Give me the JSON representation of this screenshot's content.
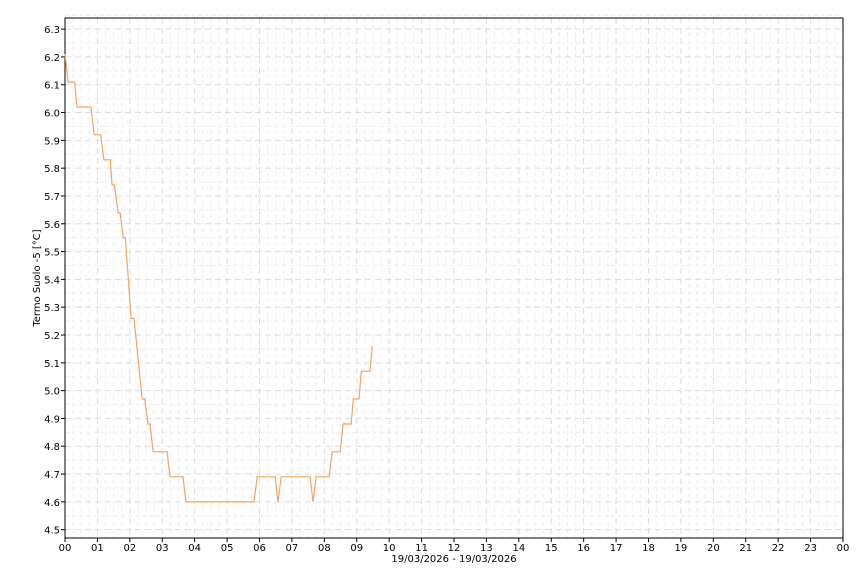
{
  "chart_data": {
    "type": "line",
    "title": "",
    "xlabel": "19/03/2026 - 19/03/2026",
    "ylabel": "Termo Suolo -5 [°C]",
    "xlim": [
      0,
      24
    ],
    "ylim": [
      4.47,
      6.34
    ],
    "grid": true,
    "x_tick_labels": [
      "00",
      "01",
      "02",
      "03",
      "04",
      "05",
      "06",
      "07",
      "08",
      "09",
      "10",
      "11",
      "12",
      "13",
      "14",
      "15",
      "16",
      "17",
      "18",
      "19",
      "20",
      "21",
      "22",
      "23",
      "00"
    ],
    "y_ticks": [
      4.5,
      4.6,
      4.7,
      4.8,
      4.9,
      5.0,
      5.1,
      5.2,
      5.3,
      5.4,
      5.5,
      5.6,
      5.7,
      5.8,
      5.9,
      6.0,
      6.1,
      6.2,
      6.3
    ],
    "y_tick_labels": [
      "4.5",
      "4.6",
      "4.7",
      "4.8",
      "4.9",
      "5.0",
      "5.1",
      "5.2",
      "5.3",
      "5.4",
      "5.5",
      "5.6",
      "5.7",
      "5.8",
      "5.9",
      "6.0",
      "6.1",
      "6.2",
      "6.3"
    ],
    "series": [
      {
        "color": "#f4a460",
        "x": [
          0,
          0.1,
          0.3,
          0.37,
          0.8,
          0.9,
          1.1,
          1.2,
          1.4,
          1.45,
          1.52,
          1.64,
          1.7,
          1.8,
          1.86,
          2.04,
          2.13,
          2.38,
          2.46,
          2.56,
          2.62,
          2.72,
          3.15,
          3.24,
          3.64,
          3.73,
          5.83,
          5.93,
          6.48,
          6.57,
          6.67,
          7.56,
          7.65,
          7.75,
          8.15,
          8.24,
          8.49,
          8.58,
          8.83,
          8.89,
          9.07,
          9.14,
          9.41,
          9.48
        ],
        "y": [
          6.21,
          6.11,
          6.11,
          6.02,
          6.02,
          5.92,
          5.92,
          5.83,
          5.83,
          5.74,
          5.74,
          5.64,
          5.64,
          5.55,
          5.55,
          5.26,
          5.26,
          4.97,
          4.97,
          4.88,
          4.88,
          4.78,
          4.78,
          4.69,
          4.69,
          4.6,
          4.6,
          4.69,
          4.69,
          4.6,
          4.69,
          4.69,
          4.6,
          4.69,
          4.69,
          4.78,
          4.78,
          4.88,
          4.88,
          4.97,
          4.97,
          5.07,
          5.07,
          5.16
        ]
      }
    ]
  }
}
